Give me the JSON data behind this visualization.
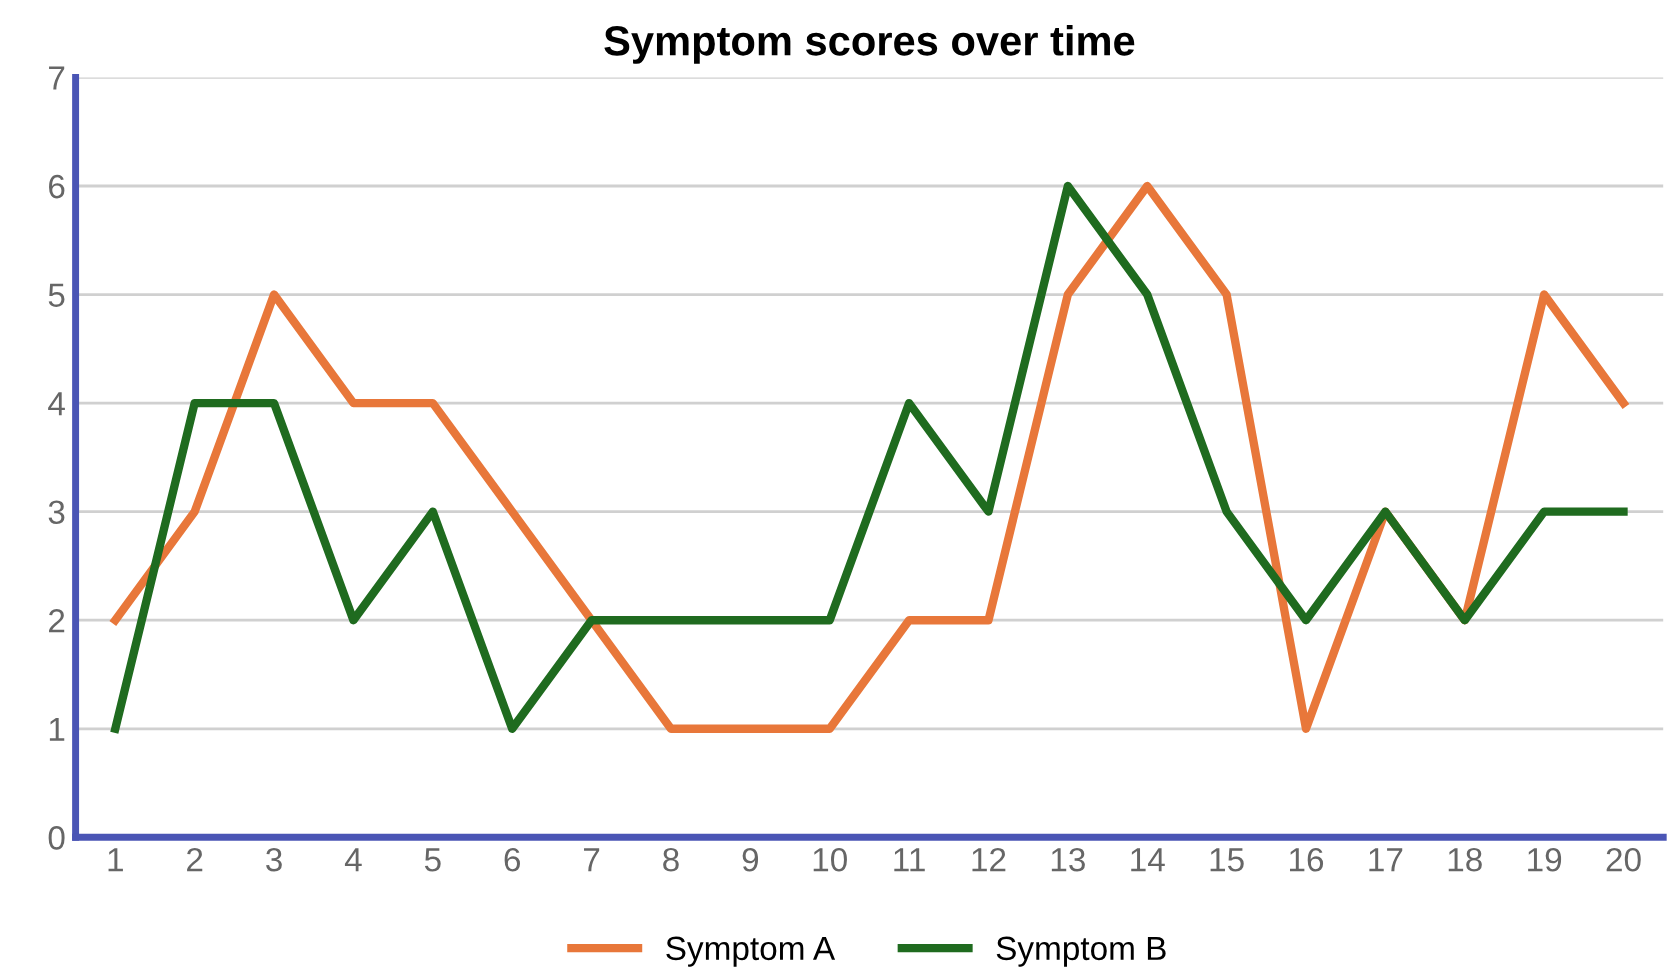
{
  "chart_data": {
    "type": "line",
    "title": "Symptom scores over time",
    "categories": [
      "1",
      "2",
      "3",
      "4",
      "5",
      "6",
      "7",
      "8",
      "9",
      "10",
      "11",
      "12",
      "13",
      "14",
      "15",
      "16",
      "17",
      "18",
      "19",
      "20"
    ],
    "series": [
      {
        "name": "Symptom A",
        "color": "#e8773a",
        "values": [
          2,
          3,
          5,
          4,
          4,
          3,
          2,
          1,
          1,
          1,
          2,
          2,
          5,
          6,
          5,
          1,
          3,
          2,
          5,
          4
        ]
      },
      {
        "name": "Symptom B",
        "color": "#1f6b1f",
        "values": [
          1,
          4,
          4,
          2,
          3,
          1,
          2,
          2,
          2,
          2,
          4,
          3,
          6,
          5,
          3,
          2,
          3,
          2,
          3,
          3
        ]
      }
    ],
    "ylim": [
      0,
      7
    ],
    "yticks": [
      0,
      1,
      2,
      3,
      4,
      5,
      6,
      7
    ],
    "grid": "y",
    "legend": "bottom",
    "marker": "none",
    "line_style": "solid"
  }
}
